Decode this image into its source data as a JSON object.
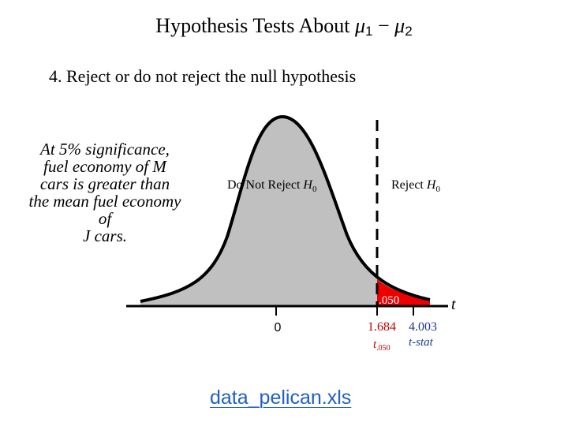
{
  "slide": {
    "title_prefix": "Hypothesis Tests About ",
    "mu_symbol": "μ",
    "sub1": "1",
    "minus": " − ",
    "sub2": "2",
    "step": "4.  Reject or do not reject the null hypothesis",
    "conclusion_lines": [
      "At 5% significance,",
      "fuel economy of M",
      "cars is greater than",
      "the mean fuel economy",
      "of",
      "J cars."
    ],
    "file_link": "data_pelican.xls"
  },
  "diagram": {
    "do_not_reject_text": "Do Not Reject ",
    "reject_text": "Reject ",
    "h_symbol": "H",
    "h_subscript": "0",
    "alpha_label": ".050",
    "axis_var": "t",
    "zero_label": "0",
    "critical_value": "1.684",
    "test_stat": "4.003",
    "critical_label_t": "t",
    "critical_label_sub": ".050",
    "stat_label": "t-stat",
    "colors": {
      "curve_fill": "#c0c0c0",
      "reject_fill": "#ee0000",
      "critical_text": "#c00000",
      "stat_text": "#1f3a8a"
    }
  }
}
